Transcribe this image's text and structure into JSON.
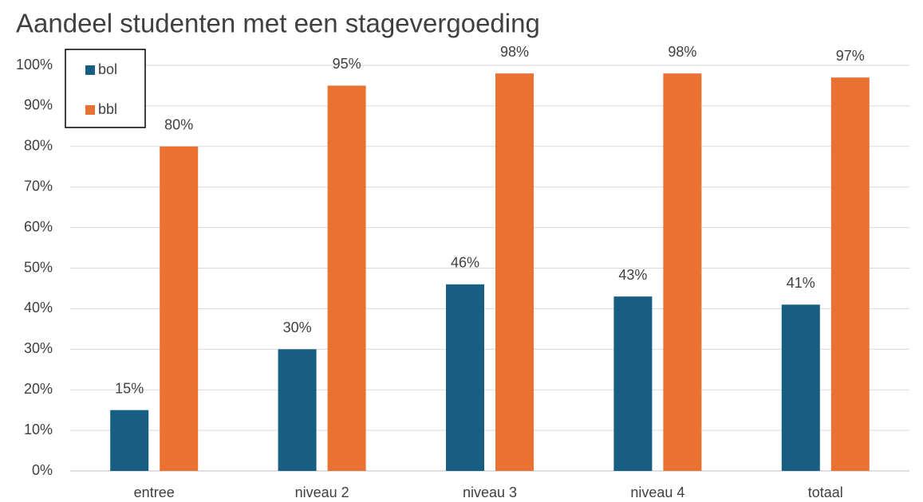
{
  "chart_data": {
    "type": "bar",
    "title": "Aandeel studenten met een stagevergoeding",
    "categories": [
      "entree",
      "niveau 2",
      "niveau 3",
      "niveau 4",
      "totaal"
    ],
    "series": [
      {
        "name": "bol",
        "color": "#175e82",
        "values": [
          15,
          30,
          46,
          43,
          41
        ],
        "value_labels": [
          "15%",
          "30%",
          "46%",
          "43%",
          "41%"
        ]
      },
      {
        "name": "bbl",
        "color": "#e97132",
        "values": [
          80,
          95,
          98,
          98,
          97
        ],
        "value_labels": [
          "80%",
          "95%",
          "98%",
          "98%",
          "97%"
        ]
      }
    ],
    "ylim": [
      0,
      100
    ],
    "yticks": [
      {
        "value": 0,
        "label": "0%"
      },
      {
        "value": 10,
        "label": "10%"
      },
      {
        "value": 20,
        "label": "20%"
      },
      {
        "value": 30,
        "label": "30%"
      },
      {
        "value": 40,
        "label": "40%"
      },
      {
        "value": 50,
        "label": "50%"
      },
      {
        "value": 60,
        "label": "60%"
      },
      {
        "value": 70,
        "label": "70%"
      },
      {
        "value": 80,
        "label": "80%"
      },
      {
        "value": 90,
        "label": "90%"
      },
      {
        "value": 100,
        "label": "100%"
      }
    ],
    "grid": true,
    "legend": "upper left"
  }
}
